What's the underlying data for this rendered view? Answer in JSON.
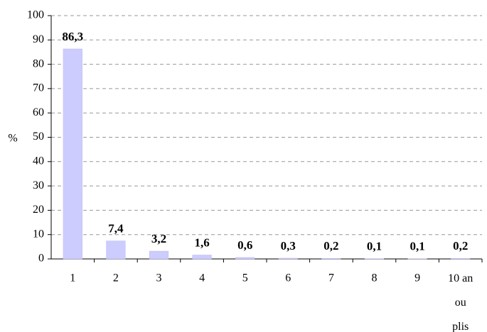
{
  "chart_data": {
    "type": "bar",
    "y_label": "%",
    "categories": [
      "1",
      "2",
      "3",
      "4",
      "5",
      "6",
      "7",
      "8",
      "9",
      "10 an ou plis"
    ],
    "values": [
      86.3,
      7.4,
      3.2,
      1.6,
      0.6,
      0.3,
      0.2,
      0.1,
      0.1,
      0.2
    ],
    "value_labels": [
      "86,3",
      "7,4",
      "3,2",
      "1,6",
      "0,6",
      "0,3",
      "0,2",
      "0,1",
      "0,1",
      "0,2"
    ],
    "color": "#ccccff",
    "ylim": [
      0,
      100
    ],
    "yticks": [
      0,
      10,
      20,
      30,
      40,
      50,
      60,
      70,
      80,
      90,
      100
    ],
    "grid": true
  }
}
